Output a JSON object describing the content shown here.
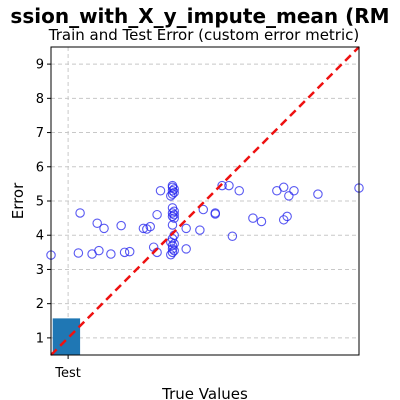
{
  "chart_data": {
    "type": "scatter",
    "title": "ssion_with_X_y_impute_mean (RM",
    "subtitle": "Train and Test Error (custom error metric)",
    "xlabel": "True Values",
    "ylabel": "Error",
    "xlim": [
      0,
      9
    ],
    "ylim": [
      0.5,
      9.5
    ],
    "yticks": [
      "1",
      "2",
      "3",
      "4",
      "5",
      "6",
      "7",
      "8",
      "9"
    ],
    "xtick_label": "Test",
    "xtick_position": 0.5,
    "grid": true,
    "colors": {
      "points": "#2222ee",
      "reference_line": "#ee1111",
      "bar": "#1f77b4"
    },
    "test_bar": {
      "x0": 0.05,
      "x1": 0.85,
      "y0": 0.5,
      "y1": 1.57
    },
    "reference_line": {
      "from": [
        0,
        0.5
      ],
      "to": [
        9,
        9.5
      ]
    },
    "points": [
      [
        0.0,
        3.42
      ],
      [
        0.8,
        3.48
      ],
      [
        0.85,
        4.65
      ],
      [
        1.2,
        3.45
      ],
      [
        1.35,
        4.35
      ],
      [
        1.4,
        3.55
      ],
      [
        1.55,
        4.2
      ],
      [
        1.75,
        3.45
      ],
      [
        2.05,
        4.28
      ],
      [
        2.15,
        3.5
      ],
      [
        2.3,
        3.52
      ],
      [
        2.7,
        4.2
      ],
      [
        2.8,
        4.18
      ],
      [
        2.9,
        4.25
      ],
      [
        3.0,
        3.65
      ],
      [
        3.1,
        3.5
      ],
      [
        3.1,
        4.6
      ],
      [
        3.2,
        5.3
      ],
      [
        3.5,
        3.43
      ],
      [
        3.55,
        3.5
      ],
      [
        3.6,
        3.55
      ],
      [
        3.55,
        3.6
      ],
      [
        3.55,
        3.7
      ],
      [
        3.6,
        3.75
      ],
      [
        3.5,
        3.8
      ],
      [
        3.55,
        3.9
      ],
      [
        3.6,
        4.0
      ],
      [
        3.55,
        4.3
      ],
      [
        3.6,
        4.5
      ],
      [
        3.55,
        4.55
      ],
      [
        3.6,
        4.6
      ],
      [
        3.55,
        4.65
      ],
      [
        3.6,
        4.7
      ],
      [
        3.55,
        4.8
      ],
      [
        3.5,
        5.15
      ],
      [
        3.55,
        5.2
      ],
      [
        3.6,
        5.25
      ],
      [
        3.55,
        5.3
      ],
      [
        3.6,
        5.35
      ],
      [
        3.55,
        5.4
      ],
      [
        3.55,
        5.45
      ],
      [
        3.95,
        3.6
      ],
      [
        3.95,
        4.2
      ],
      [
        4.35,
        4.15
      ],
      [
        4.45,
        4.75
      ],
      [
        4.8,
        4.65
      ],
      [
        4.8,
        4.62
      ],
      [
        5.0,
        5.45
      ],
      [
        5.2,
        5.45
      ],
      [
        5.3,
        3.97
      ],
      [
        5.5,
        5.3
      ],
      [
        5.9,
        4.5
      ],
      [
        6.15,
        4.4
      ],
      [
        6.6,
        5.3
      ],
      [
        6.8,
        5.4
      ],
      [
        6.8,
        4.45
      ],
      [
        6.9,
        4.55
      ],
      [
        6.95,
        5.15
      ],
      [
        7.1,
        5.3
      ],
      [
        7.8,
        5.2
      ],
      [
        9.0,
        5.38
      ]
    ]
  }
}
